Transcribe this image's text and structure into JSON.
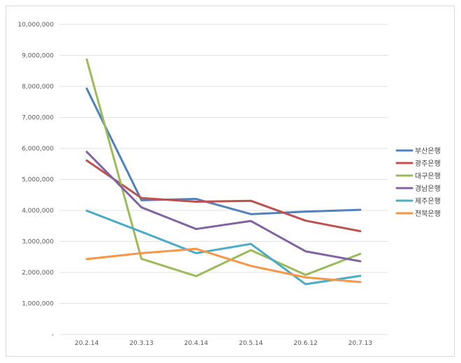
{
  "chart_data": {
    "type": "line",
    "title": "",
    "xlabel": "",
    "ylabel": "",
    "categories": [
      "20.2.14",
      "20.3.13",
      "20.4.14",
      "20.5.14",
      "20.6.12",
      "20.7.13"
    ],
    "ylim": [
      0,
      10000000
    ],
    "ytick_values": [
      0,
      1000000,
      2000000,
      3000000,
      4000000,
      5000000,
      6000000,
      7000000,
      8000000,
      9000000,
      10000000
    ],
    "ytick_labels": [
      "-",
      "1,000,000",
      "2,000,000",
      "3,000,000",
      "4,000,000",
      "5,000,000",
      "6,000,000",
      "7,000,000",
      "8,000,000",
      "9,000,000",
      "10,000,000"
    ],
    "grid": "horizontal",
    "legend_position": "right",
    "series": [
      {
        "name": "부산은행",
        "color": "#4f81bd",
        "values": [
          7930000,
          4330000,
          4370000,
          3880000,
          3960000,
          4020000
        ]
      },
      {
        "name": "광주은행",
        "color": "#c0504d",
        "values": [
          5610000,
          4400000,
          4280000,
          4310000,
          3670000,
          3330000
        ]
      },
      {
        "name": "대구은행",
        "color": "#9bbb59",
        "values": [
          8870000,
          2440000,
          1880000,
          2720000,
          1920000,
          2600000
        ]
      },
      {
        "name": "경남은행",
        "color": "#8064a2",
        "values": [
          5890000,
          4100000,
          3400000,
          3660000,
          2680000,
          2360000
        ]
      },
      {
        "name": "제주은행",
        "color": "#4bacc6",
        "values": [
          3990000,
          3310000,
          2620000,
          2920000,
          1620000,
          1890000
        ]
      },
      {
        "name": "전북은행",
        "color": "#f79646",
        "values": [
          2430000,
          2620000,
          2760000,
          2210000,
          1840000,
          1690000
        ]
      }
    ]
  }
}
